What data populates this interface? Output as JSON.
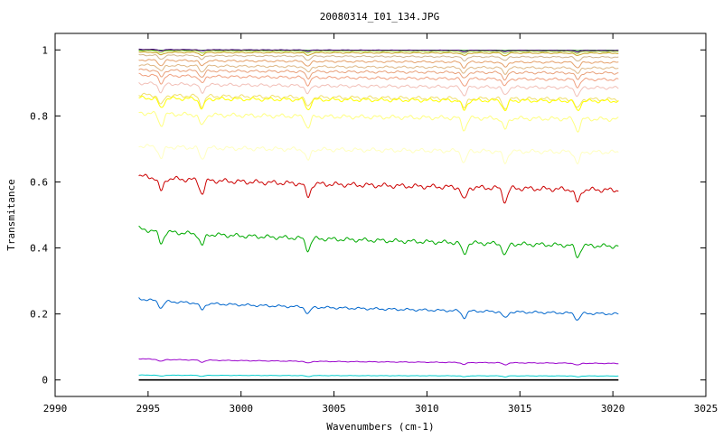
{
  "chart_data": {
    "type": "line",
    "title": "20080314_I01_134.JPG",
    "xlabel": "Wavenumbers (cm-1)",
    "ylabel": "Transmitance",
    "xlim": [
      2990,
      3025
    ],
    "ylim": [
      -0.05,
      1.05
    ],
    "x_ticks": [
      2990,
      2995,
      3000,
      3005,
      3010,
      3015,
      3020,
      3025
    ],
    "x_tick_labels": [
      "2990",
      "2995",
      "3000",
      "3005",
      "3010",
      "3015",
      "3020",
      "3025"
    ],
    "y_ticks": [
      0,
      0.2,
      0.4,
      0.6,
      0.8,
      1
    ],
    "y_tick_labels": [
      "0",
      "0.2",
      "0.4",
      "0.6",
      "0.8",
      "1"
    ],
    "grid": false,
    "legend": "none",
    "x_range": [
      2994.5,
      3020.3
    ],
    "absorption_lines": [
      2995.7,
      2997.9,
      3003.6,
      3012.0,
      3014.2,
      3018.1
    ],
    "series": [
      {
        "color": "#006400",
        "start": 1.0,
        "end": 0.999,
        "depth": 0.001
      },
      {
        "color": "#4b0082",
        "start": 1.002,
        "end": 0.998,
        "depth": 0.004
      },
      {
        "color": "#9acd32",
        "start": 0.998,
        "end": 0.995,
        "depth": 0.006
      },
      {
        "color": "#c9a227",
        "start": 0.993,
        "end": 0.99,
        "depth": 0.008
      },
      {
        "color": "#d2b48c",
        "start": 0.985,
        "end": 0.978,
        "depth": 0.012
      },
      {
        "color": "#e4a06a",
        "start": 0.97,
        "end": 0.962,
        "depth": 0.016
      },
      {
        "color": "#deb887",
        "start": 0.955,
        "end": 0.945,
        "depth": 0.018
      },
      {
        "color": "#e8a07a",
        "start": 0.94,
        "end": 0.93,
        "depth": 0.02
      },
      {
        "color": "#f0a080",
        "start": 0.925,
        "end": 0.91,
        "depth": 0.022
      },
      {
        "color": "#f2c0b8",
        "start": 0.9,
        "end": 0.885,
        "depth": 0.025
      },
      {
        "color": "#f0e070",
        "start": 0.865,
        "end": 0.85,
        "depth": 0.03
      },
      {
        "color": "#ffff00",
        "start": 0.855,
        "end": 0.845,
        "depth": 0.03
      },
      {
        "color": "#ffff80",
        "start": 0.81,
        "end": 0.79,
        "depth": 0.035
      },
      {
        "color": "#ffffc0",
        "start": 0.71,
        "end": 0.69,
        "depth": 0.035
      },
      {
        "color": "#cc0000",
        "start": 0.62,
        "end": 0.575,
        "depth": 0.04
      },
      {
        "color": "#00aa00",
        "start": 0.46,
        "end": 0.405,
        "depth": 0.035
      },
      {
        "color": "#0066cc",
        "start": 0.248,
        "end": 0.2,
        "depth": 0.02
      },
      {
        "color": "#9900cc",
        "start": 0.065,
        "end": 0.05,
        "depth": 0.006
      },
      {
        "color": "#00cccc",
        "start": 0.015,
        "end": 0.012,
        "depth": 0.003
      },
      {
        "color": "#000000",
        "start": 0.0,
        "end": 0.0,
        "depth": 0.0
      }
    ]
  }
}
